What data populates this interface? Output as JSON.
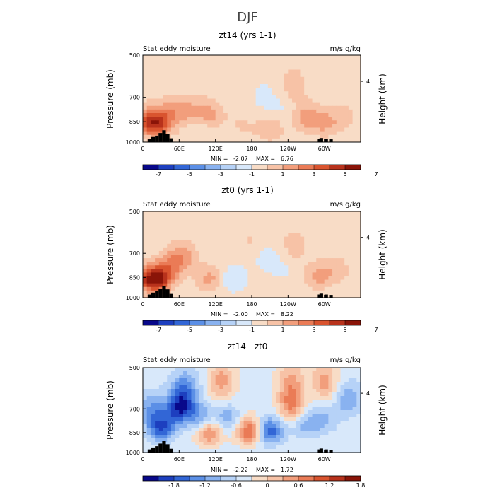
{
  "figure_title": "DJF",
  "chart_data": [
    {
      "type": "heatmap",
      "title": "zt14 (yrs 1-1)",
      "left_label": "Stat eddy moisture",
      "right_label": "m/s g/kg",
      "ylabel": "Pressure (mb)",
      "y2label": "Height (km)",
      "xlabel": "",
      "x_ticks": [
        "0",
        "60E",
        "120E",
        "180",
        "120W",
        "60W"
      ],
      "x_tick_values": [
        0,
        60,
        120,
        180,
        240,
        300
      ],
      "xlim": [
        0,
        360
      ],
      "y_ticks": [
        "500",
        "700",
        "850",
        "1000"
      ],
      "y_tick_values": [
        500,
        700,
        850,
        1000
      ],
      "ylim": [
        500,
        1000
      ],
      "y2_ticks": [
        "4"
      ],
      "stats": {
        "min_label": "MIN =",
        "min": "-2.07",
        "max_label": "MAX =",
        "max": "6.76"
      },
      "colorbar_labels": [
        "-7",
        "-5",
        "-3",
        "-1",
        "1",
        "3",
        "5",
        "7"
      ],
      "colorbar_colors": [
        "#08088a",
        "#1d3fbf",
        "#3266d6",
        "#5b8fe6",
        "#89b2f0",
        "#b6d2f7",
        "#d8e8fa",
        "#f8dcc6",
        "#f7c2a6",
        "#f29e7c",
        "#ea7b56",
        "#d9542f",
        "#b8321c",
        "#8a1408"
      ],
      "hotspots": [
        {
          "lon": 12,
          "p": 850,
          "v": 5.5
        },
        {
          "lon": 30,
          "p": 870,
          "v": 3.0
        },
        {
          "lon": 48,
          "p": 790,
          "v": 2.5
        },
        {
          "lon": 80,
          "p": 780,
          "v": 2.0
        },
        {
          "lon": 110,
          "p": 820,
          "v": 3.2
        },
        {
          "lon": 160,
          "p": 900,
          "v": 1.5
        },
        {
          "lon": 210,
          "p": 900,
          "v": 1.8
        },
        {
          "lon": 248,
          "p": 640,
          "v": 1.5
        },
        {
          "lon": 270,
          "p": 820,
          "v": 2.5
        },
        {
          "lon": 300,
          "p": 860,
          "v": 2.2
        },
        {
          "lon": 330,
          "p": 820,
          "v": 1.2
        },
        {
          "lon": 200,
          "p": 700,
          "v": -1.0
        },
        {
          "lon": 230,
          "p": 760,
          "v": -0.8
        },
        {
          "lon": 100,
          "p": 880,
          "v": -1.6
        },
        {
          "lon": 150,
          "p": 950,
          "v": -1.2
        }
      ],
      "base_value": 0.6
    },
    {
      "type": "heatmap",
      "title": "zt0 (yrs 1-1)",
      "left_label": "Stat eddy moisture",
      "right_label": "m/s g/kg",
      "ylabel": "Pressure (mb)",
      "y2label": "Height (km)",
      "xlabel": "",
      "x_ticks": [
        "0",
        "60E",
        "120E",
        "180",
        "120W",
        "60W"
      ],
      "x_tick_values": [
        0,
        60,
        120,
        180,
        240,
        300
      ],
      "xlim": [
        0,
        360
      ],
      "y_ticks": [
        "500",
        "700",
        "850",
        "1000"
      ],
      "y_tick_values": [
        500,
        700,
        850,
        1000
      ],
      "ylim": [
        500,
        1000
      ],
      "y2_ticks": [
        "4"
      ],
      "stats": {
        "min_label": "MIN =",
        "min": "-2.00",
        "max_label": "MAX =",
        "max": "8.22"
      },
      "colorbar_labels": [
        "-7",
        "-5",
        "-3",
        "-1",
        "1",
        "3",
        "5",
        "7"
      ],
      "colorbar_colors": [
        "#08088a",
        "#1d3fbf",
        "#3266d6",
        "#5b8fe6",
        "#89b2f0",
        "#b6d2f7",
        "#d8e8fa",
        "#f8dcc6",
        "#f7c2a6",
        "#f29e7c",
        "#ea7b56",
        "#d9542f",
        "#b8321c",
        "#8a1408"
      ],
      "hotspots": [
        {
          "lon": 12,
          "p": 860,
          "v": 6.0
        },
        {
          "lon": 30,
          "p": 860,
          "v": 4.5
        },
        {
          "lon": 50,
          "p": 760,
          "v": 3.0
        },
        {
          "lon": 70,
          "p": 720,
          "v": 2.0
        },
        {
          "lon": 110,
          "p": 860,
          "v": 2.5
        },
        {
          "lon": 180,
          "p": 640,
          "v": 1.0
        },
        {
          "lon": 250,
          "p": 660,
          "v": 1.5
        },
        {
          "lon": 290,
          "p": 840,
          "v": 2.5
        },
        {
          "lon": 320,
          "p": 800,
          "v": 1.5
        },
        {
          "lon": 150,
          "p": 860,
          "v": -1.8
        },
        {
          "lon": 200,
          "p": 720,
          "v": -1.0
        },
        {
          "lon": 230,
          "p": 780,
          "v": -0.8
        }
      ],
      "base_value": 0.5
    },
    {
      "type": "heatmap",
      "title": "zt14 - zt0",
      "left_label": "Stat eddy moisture",
      "right_label": "m/s g/kg",
      "ylabel": "Pressure (mb)",
      "y2label": "Height (km)",
      "xlabel": "",
      "x_ticks": [
        "0",
        "60E",
        "120E",
        "180",
        "120W",
        "60W"
      ],
      "x_tick_values": [
        0,
        60,
        120,
        180,
        240,
        300
      ],
      "xlim": [
        0,
        360
      ],
      "y_ticks": [
        "500",
        "700",
        "850",
        "1000"
      ],
      "y_tick_values": [
        500,
        700,
        850,
        1000
      ],
      "ylim": [
        500,
        1000
      ],
      "y2_ticks": [
        "4"
      ],
      "stats": {
        "min_label": "MIN =",
        "min": "-2.22",
        "max_label": "MAX =",
        "max": "1.72"
      },
      "colorbar_labels": [
        "-1.8",
        "-1.2",
        "-0.6",
        "0",
        "0.6",
        "1.2",
        "1.8"
      ],
      "colorbar_colors": [
        "#08088a",
        "#1d3fbf",
        "#3266d6",
        "#5b8fe6",
        "#89b2f0",
        "#b6d2f7",
        "#d8e8fa",
        "#f8dcc6",
        "#f7c2a6",
        "#f29e7c",
        "#ea7b56",
        "#d9542f",
        "#b8321c",
        "#8a1408"
      ],
      "hotspots": [
        {
          "lon": 15,
          "p": 700,
          "v": -0.9
        },
        {
          "lon": 30,
          "p": 820,
          "v": -1.6
        },
        {
          "lon": 60,
          "p": 700,
          "v": -1.7
        },
        {
          "lon": 70,
          "p": 600,
          "v": -1.1
        },
        {
          "lon": 95,
          "p": 750,
          "v": -0.9
        },
        {
          "lon": 110,
          "p": 850,
          "v": 1.3
        },
        {
          "lon": 130,
          "p": 560,
          "v": 1.0
        },
        {
          "lon": 140,
          "p": 760,
          "v": -0.8
        },
        {
          "lon": 175,
          "p": 840,
          "v": 1.6
        },
        {
          "lon": 210,
          "p": 840,
          "v": -1.5
        },
        {
          "lon": 245,
          "p": 680,
          "v": 1.2
        },
        {
          "lon": 245,
          "p": 560,
          "v": 0.9
        },
        {
          "lon": 270,
          "p": 800,
          "v": -0.7
        },
        {
          "lon": 300,
          "p": 560,
          "v": 1.0
        },
        {
          "lon": 300,
          "p": 760,
          "v": -0.6
        },
        {
          "lon": 340,
          "p": 650,
          "v": -0.8
        }
      ],
      "base_value": -0.15
    }
  ]
}
